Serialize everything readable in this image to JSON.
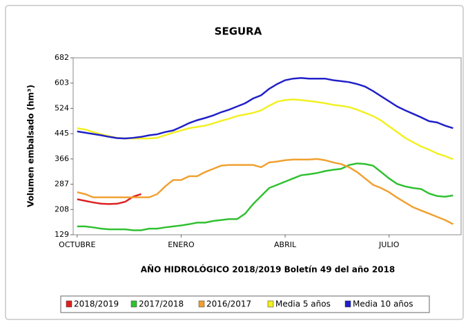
{
  "chart_data": {
    "type": "line",
    "title": "SEGURA",
    "y_label": "Volumen embalsado (hm³)",
    "x_label": "AÑO HIDROLÓGICO 2018/2019 Boletín 49 del año 2018",
    "x": [
      0,
      1,
      2,
      3,
      4,
      5,
      6,
      7,
      8,
      9,
      10,
      11,
      12,
      13,
      14,
      15,
      16,
      17,
      18,
      19,
      20,
      21,
      22,
      23,
      24,
      25,
      26,
      27,
      28,
      29,
      30,
      31,
      32,
      33,
      34,
      35,
      36,
      37,
      38,
      39,
      40,
      41,
      42,
      43,
      44,
      45,
      46,
      47
    ],
    "xlim": [
      -0.5,
      48
    ],
    "xticks": [
      {
        "value": 0,
        "label": "OCTUBRE"
      },
      {
        "value": 13,
        "label": "ENERO"
      },
      {
        "value": 26,
        "label": "ABRIL"
      },
      {
        "value": 39,
        "label": "JULIO"
      }
    ],
    "ylim": [
      129,
      682
    ],
    "yticks": [
      129,
      208,
      287,
      366,
      445,
      524,
      603,
      682
    ],
    "legend": "bottom",
    "series": [
      {
        "name": "2018/2019",
        "color": "#dd2020",
        "values": [
          240,
          235,
          230,
          226,
          225,
          226,
          232,
          248,
          256,
          null,
          null,
          null,
          null,
          null,
          null,
          null,
          null,
          null,
          null,
          null,
          null,
          null,
          null,
          null,
          null,
          null,
          null,
          null,
          null,
          null,
          null,
          null,
          null,
          null,
          null,
          null,
          null,
          null,
          null,
          null,
          null,
          null,
          null,
          null,
          null,
          null,
          null,
          null
        ]
      },
      {
        "name": "2017/2018",
        "color": "#30c030",
        "values": [
          155,
          155,
          152,
          148,
          146,
          146,
          146,
          143,
          143,
          148,
          148,
          152,
          155,
          158,
          162,
          167,
          167,
          172,
          175,
          178,
          178,
          195,
          225,
          250,
          275,
          285,
          295,
          305,
          315,
          318,
          322,
          328,
          332,
          335,
          347,
          352,
          350,
          345,
          325,
          305,
          288,
          280,
          275,
          272,
          258,
          250,
          248,
          252
        ]
      },
      {
        "name": "2016/2017",
        "color": "#f0a030",
        "values": [
          262,
          256,
          246,
          246,
          246,
          246,
          246,
          246,
          246,
          246,
          256,
          280,
          300,
          300,
          312,
          312,
          325,
          335,
          345,
          347,
          347,
          347,
          347,
          340,
          355,
          358,
          362,
          364,
          364,
          364,
          366,
          362,
          355,
          350,
          340,
          325,
          305,
          285,
          275,
          262,
          245,
          230,
          215,
          205,
          195,
          185,
          175,
          162
        ]
      },
      {
        "name": "Media 5 años",
        "color": "#f2f020",
        "values": [
          462,
          458,
          450,
          443,
          437,
          432,
          430,
          430,
          430,
          430,
          432,
          440,
          448,
          455,
          462,
          466,
          470,
          477,
          485,
          492,
          500,
          505,
          510,
          518,
          532,
          545,
          550,
          552,
          550,
          547,
          544,
          540,
          535,
          532,
          528,
          520,
          510,
          500,
          486,
          468,
          450,
          432,
          418,
          405,
          395,
          383,
          375,
          365
        ]
      },
      {
        "name": "Media 10 años",
        "color": "#2020c8",
        "values": [
          452,
          448,
          444,
          440,
          435,
          431,
          430,
          432,
          435,
          440,
          443,
          450,
          455,
          466,
          478,
          487,
          494,
          502,
          512,
          520,
          530,
          540,
          555,
          565,
          585,
          600,
          612,
          617,
          619,
          617,
          617,
          617,
          612,
          609,
          606,
          600,
          592,
          578,
          562,
          546,
          530,
          518,
          507,
          496,
          484,
          480,
          470,
          462
        ]
      }
    ]
  }
}
